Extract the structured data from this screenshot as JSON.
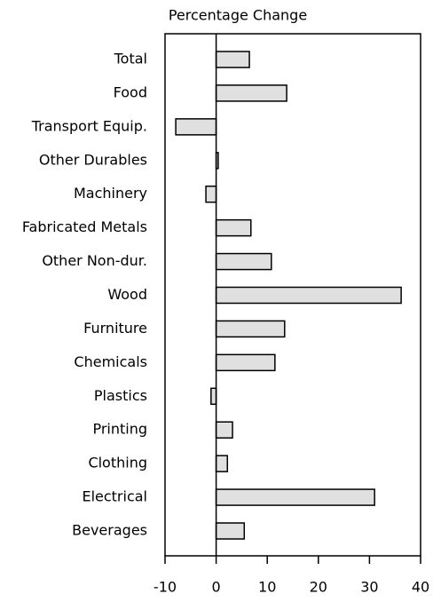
{
  "chart_data": {
    "type": "hbar",
    "title": "Percentage Change",
    "categories": [
      "Total",
      "Food",
      "Transport Equip.",
      "Other Durables",
      "Machinery",
      "Fabricated Metals",
      "Other Non-dur.",
      "Wood",
      "Furniture",
      "Chemicals",
      "Plastics",
      "Printing",
      "Clothing",
      "Electrical",
      "Beverages"
    ],
    "values": [
      6.5,
      13.8,
      -7.9,
      0.4,
      -2.0,
      6.8,
      10.8,
      36.2,
      13.4,
      11.5,
      -1.0,
      3.2,
      2.2,
      31.0,
      5.5
    ],
    "color": "#e0e0e0",
    "xlim": [
      -10,
      40
    ],
    "xticks": [
      -10,
      0,
      10,
      20,
      30,
      40
    ],
    "grid": false
  }
}
